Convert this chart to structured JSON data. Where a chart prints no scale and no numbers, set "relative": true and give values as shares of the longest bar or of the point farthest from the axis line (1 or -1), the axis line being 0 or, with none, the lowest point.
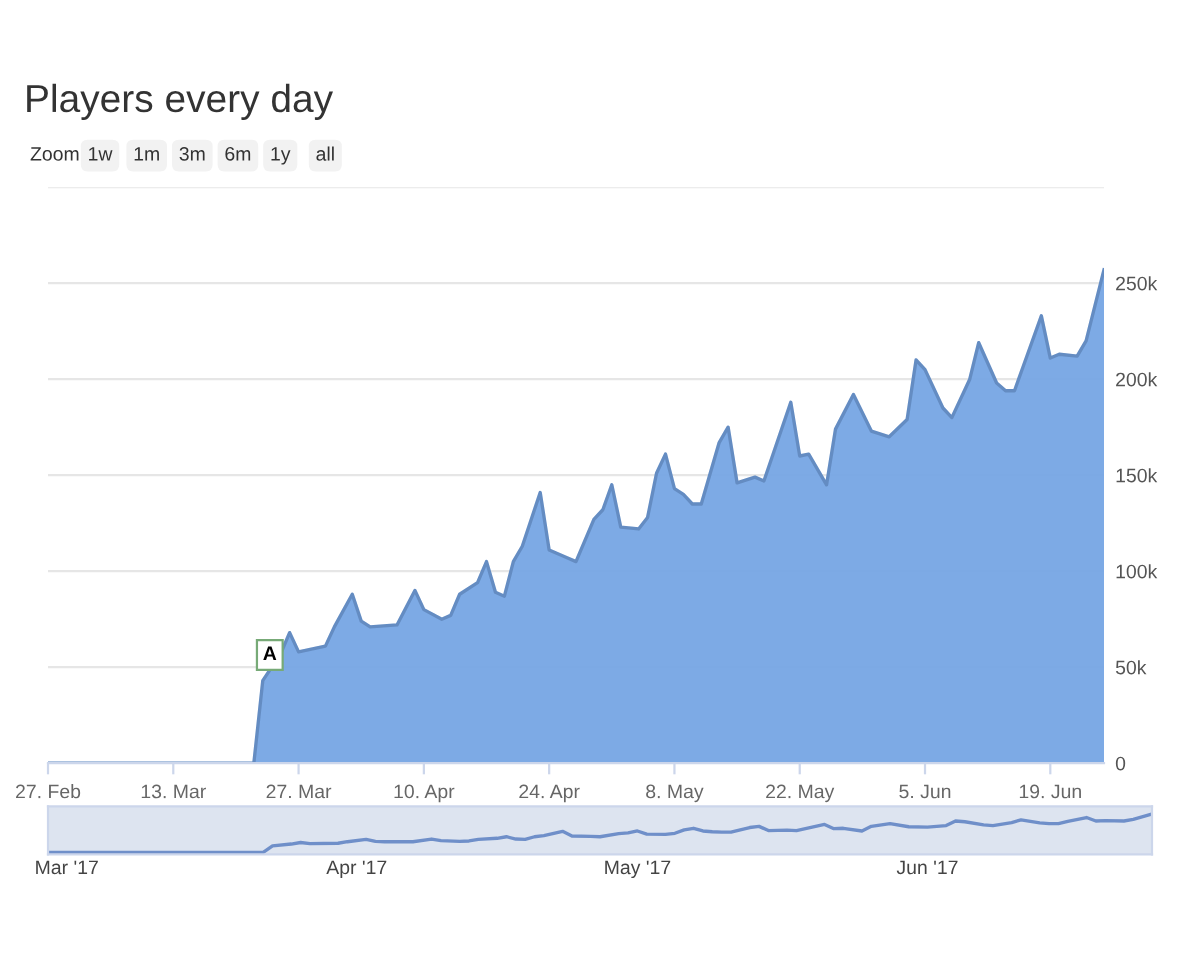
{
  "chart_data": [
    {
      "type": "area",
      "title": "Players every day",
      "grid": "y",
      "annotations": [
        "Zoom",
        "1w",
        "1m",
        "3m",
        "6m",
        "1y",
        "all",
        {
          "text": "A",
          "x": "2017-03-23",
          "y": 43000
        }
      ],
      "x": [
        "2017-02-27",
        "2017-03-22",
        "2017-03-23",
        "2017-03-25",
        "2017-03-26",
        "2017-03-27",
        "2017-03-30",
        "2017-03-31",
        "2017-04-02",
        "2017-04-03",
        "2017-04-04",
        "2017-04-07",
        "2017-04-09",
        "2017-04-10",
        "2017-04-12",
        "2017-04-13",
        "2017-04-14",
        "2017-04-16",
        "2017-04-17",
        "2017-04-18",
        "2017-04-19",
        "2017-04-20",
        "2017-04-21",
        "2017-04-23",
        "2017-04-24",
        "2017-04-26",
        "2017-04-27",
        "2017-04-29",
        "2017-04-30",
        "2017-05-01",
        "2017-05-02",
        "2017-05-04",
        "2017-05-05",
        "2017-05-06",
        "2017-05-07",
        "2017-05-08",
        "2017-05-09",
        "2017-05-10",
        "2017-05-11",
        "2017-05-13",
        "2017-05-14",
        "2017-05-15",
        "2017-05-17",
        "2017-05-18",
        "2017-05-21",
        "2017-05-22",
        "2017-05-23",
        "2017-05-25",
        "2017-05-26",
        "2017-05-28",
        "2017-05-30",
        "2017-06-01",
        "2017-06-03",
        "2017-06-04",
        "2017-06-05",
        "2017-06-07",
        "2017-06-08",
        "2017-06-10",
        "2017-06-11",
        "2017-06-13",
        "2017-06-14",
        "2017-06-15",
        "2017-06-16",
        "2017-06-18",
        "2017-06-19",
        "2017-06-20",
        "2017-06-22",
        "2017-06-23",
        "2017-06-25"
      ],
      "series": [
        {
          "color": "#76a5e4",
          "values": [
            0,
            0,
            43000,
            57000,
            68000,
            58000,
            61000,
            71000,
            88000,
            74000,
            71000,
            72000,
            90000,
            80000,
            75000,
            77000,
            88000,
            94000,
            105000,
            89000,
            87000,
            105000,
            113000,
            141000,
            111000,
            107000,
            105000,
            127000,
            132000,
            145000,
            123000,
            122000,
            128000,
            151000,
            161000,
            143000,
            140000,
            135000,
            135000,
            167000,
            175000,
            146000,
            149000,
            147000,
            188000,
            160000,
            161000,
            145000,
            174000,
            192000,
            173000,
            170000,
            179000,
            210000,
            205000,
            185000,
            180000,
            200000,
            219000,
            198000,
            194000,
            194000,
            207000,
            233000,
            211000,
            213000,
            212000,
            220000,
            257000
          ]
        }
      ],
      "xlim": [
        "2017-02-27",
        "2017-06-25"
      ],
      "xticks": [
        {
          "value": "2017-02-27",
          "label": "27. Feb"
        },
        {
          "value": "2017-03-13",
          "label": "13. Mar"
        },
        {
          "value": "2017-03-27",
          "label": "27. Mar"
        },
        {
          "value": "2017-04-10",
          "label": "10. Apr"
        },
        {
          "value": "2017-04-24",
          "label": "24. Apr"
        },
        {
          "value": "2017-05-08",
          "label": "8. May"
        },
        {
          "value": "2017-05-22",
          "label": "22. May"
        },
        {
          "value": "2017-06-05",
          "label": "5. Jun"
        },
        {
          "value": "2017-06-19",
          "label": "19. Jun"
        }
      ],
      "ylim": [
        0,
        300000
      ],
      "yticks": [
        0,
        {
          "value": 50000,
          "label": "50k"
        },
        {
          "value": 100000,
          "label": "100k"
        },
        {
          "value": 150000,
          "label": "150k"
        },
        {
          "value": 200000,
          "label": "200k"
        },
        {
          "value": 250000,
          "label": "250k"
        },
        {
          "value": 300000,
          "label": null
        }
      ]
    },
    {
      "type": "line",
      "relative": true,
      "x": [
        "2017-02-27",
        "2017-03-22",
        "2017-03-23",
        "2017-03-25",
        "2017-03-26",
        "2017-03-27",
        "2017-03-30",
        "2017-03-31",
        "2017-04-02",
        "2017-04-03",
        "2017-04-04",
        "2017-04-07",
        "2017-04-09",
        "2017-04-10",
        "2017-04-12",
        "2017-04-13",
        "2017-04-14",
        "2017-04-16",
        "2017-04-17",
        "2017-04-18",
        "2017-04-19",
        "2017-04-20",
        "2017-04-21",
        "2017-04-23",
        "2017-04-24",
        "2017-04-26",
        "2017-04-27",
        "2017-04-29",
        "2017-04-30",
        "2017-05-01",
        "2017-05-02",
        "2017-05-04",
        "2017-05-05",
        "2017-05-06",
        "2017-05-07",
        "2017-05-08",
        "2017-05-09",
        "2017-05-10",
        "2017-05-11",
        "2017-05-13",
        "2017-05-14",
        "2017-05-15",
        "2017-05-17",
        "2017-05-18",
        "2017-05-21",
        "2017-05-22",
        "2017-05-23",
        "2017-05-25",
        "2017-05-26",
        "2017-05-28",
        "2017-05-30",
        "2017-06-01",
        "2017-06-03",
        "2017-06-04",
        "2017-06-05",
        "2017-06-07",
        "2017-06-08",
        "2017-06-10",
        "2017-06-11",
        "2017-06-13",
        "2017-06-14",
        "2017-06-15",
        "2017-06-16",
        "2017-06-18",
        "2017-06-19",
        "2017-06-20",
        "2017-06-22",
        "2017-06-23",
        "2017-06-25"
      ],
      "series": [
        {
          "color": "#6f8fc9",
          "values": [
            0,
            0,
            0.17,
            0.22,
            0.26,
            0.23,
            0.24,
            0.28,
            0.34,
            0.29,
            0.28,
            0.28,
            0.35,
            0.31,
            0.29,
            0.3,
            0.34,
            0.37,
            0.41,
            0.35,
            0.34,
            0.41,
            0.44,
            0.55,
            0.43,
            0.42,
            0.41,
            0.49,
            0.51,
            0.56,
            0.48,
            0.47,
            0.5,
            0.59,
            0.63,
            0.56,
            0.54,
            0.53,
            0.53,
            0.65,
            0.68,
            0.57,
            0.58,
            0.57,
            0.73,
            0.62,
            0.63,
            0.56,
            0.68,
            0.75,
            0.67,
            0.66,
            0.7,
            0.82,
            0.8,
            0.72,
            0.7,
            0.78,
            0.85,
            0.77,
            0.75,
            0.75,
            0.81,
            0.91,
            0.82,
            0.83,
            0.82,
            0.86,
            1
          ]
        }
      ],
      "xlim": [
        "2017-02-27",
        "2017-06-25"
      ],
      "xticks": [
        {
          "value": "2017-03-01",
          "label": "Mar '17"
        },
        {
          "value": "2017-04-01",
          "label": "Apr '17"
        },
        {
          "value": "2017-05-01",
          "label": "May '17"
        },
        {
          "value": "2017-06-01",
          "label": "Jun '17"
        }
      ]
    }
  ]
}
